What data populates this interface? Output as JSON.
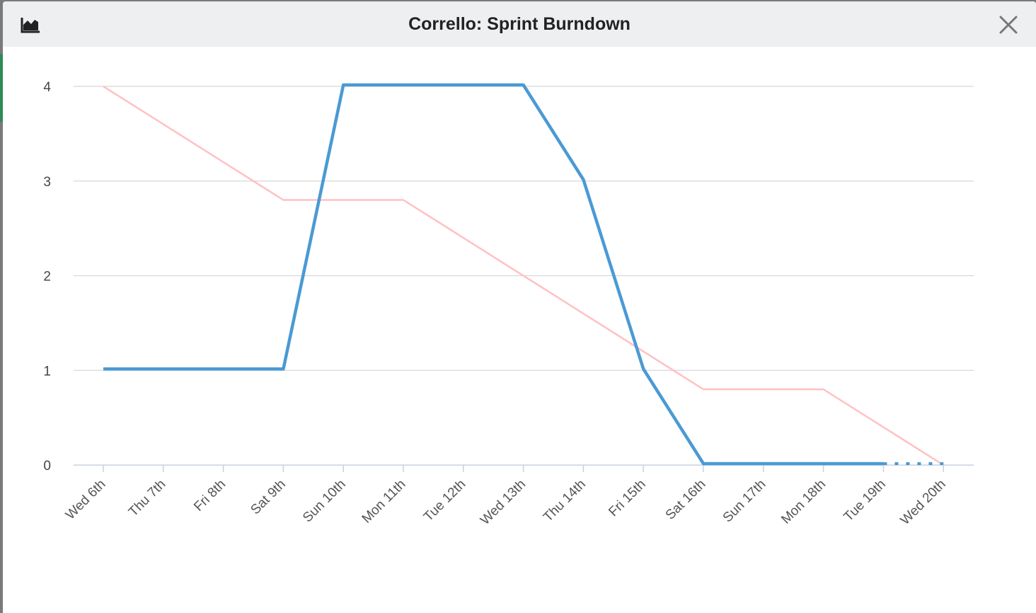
{
  "window": {
    "title": "Corrello: Sprint Burndown",
    "icons": {
      "left": "area-chart-icon",
      "right": "close-icon"
    }
  },
  "chart_data": {
    "type": "line",
    "title": "",
    "xlabel": "",
    "ylabel": "",
    "categories": [
      "Wed 6th",
      "Thu 7th",
      "Fri 8th",
      "Sat 9th",
      "Sun 10th",
      "Mon 11th",
      "Tue 12th",
      "Wed 13th",
      "Thu 14th",
      "Fri 15th",
      "Sat 16th",
      "Sun 17th",
      "Mon 18th",
      "Tue 19th",
      "Wed 20th"
    ],
    "ylim": [
      0,
      4
    ],
    "yticks": [
      0,
      1,
      2,
      3,
      4
    ],
    "grid": true,
    "series": [
      {
        "color": "#ffc0c3",
        "values": [
          4,
          3.6,
          3.2,
          2.8,
          2.8,
          2.8,
          2.4,
          2.0,
          1.6,
          1.2,
          0.8,
          0.8,
          0.8,
          0.4,
          0
        ]
      },
      {
        "color": "#4a9ad4",
        "values": [
          1,
          1,
          1,
          1,
          4,
          4,
          4,
          4,
          3,
          1,
          0,
          0,
          0,
          0,
          0
        ],
        "projected_from": "Tue 19th"
      }
    ]
  }
}
